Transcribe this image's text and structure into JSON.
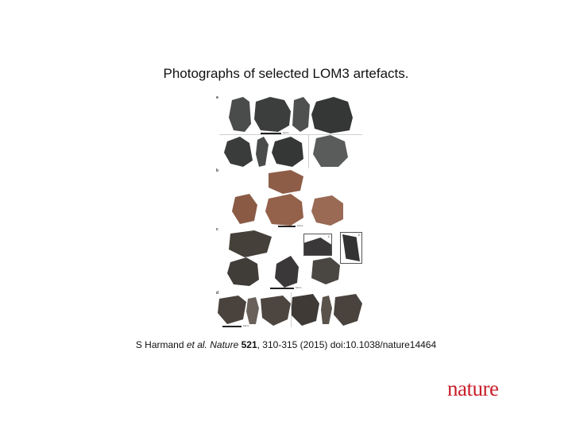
{
  "slide": {
    "title": "Photographs of selected LOM3 artefacts."
  },
  "figure": {
    "panels": [
      "a",
      "b",
      "c",
      "d"
    ],
    "scale_label": "10cm",
    "inset_numbers": [
      "1",
      "2"
    ],
    "colors": {
      "dark_stone": "#3f4141",
      "gray_stone": "#5f6160",
      "brown_stone": "#8a5a45",
      "reddish_stone": "#9a6a55"
    }
  },
  "citation": {
    "author": "S Harmand",
    "etal": "et al.",
    "journal": "Nature",
    "volume": "521",
    "pages_year_doi": ", 310-315 (2015) doi:10.1038/nature14464"
  },
  "logo": {
    "text": "nature",
    "color": "#c8202b"
  }
}
